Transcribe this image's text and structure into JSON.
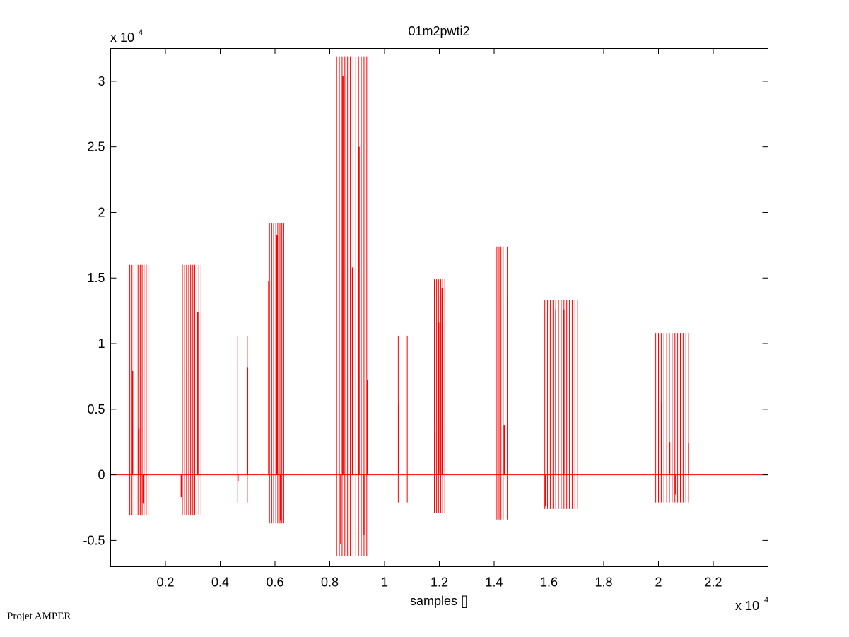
{
  "figure": {
    "footer_text": "Projet AMPER"
  },
  "chart_data": {
    "type": "line",
    "title": "01m2pwti2",
    "xlabel": "samples []",
    "ylabel": "",
    "x_exponent_label": "x 10",
    "x_exponent_power": "4",
    "y_exponent_label": "x 10",
    "y_exponent_power": "4",
    "xlim": [
      0,
      2.4
    ],
    "ylim": [
      -0.7,
      3.25
    ],
    "x_ticks": [
      0.2,
      0.4,
      0.6,
      0.8,
      1,
      1.2,
      1.4,
      1.6,
      1.8,
      2,
      2.2
    ],
    "x_tick_labels": [
      "0.2",
      "0.4",
      "0.6",
      "0.8",
      "1",
      "1.2",
      "1.4",
      "1.6",
      "1.8",
      "2",
      "2.2"
    ],
    "y_ticks": [
      -0.5,
      0,
      0.5,
      1,
      1.5,
      2,
      2.5,
      3
    ],
    "y_tick_labels": [
      "-0.5",
      "0",
      "0.5",
      "1",
      "1.5",
      "2",
      "2.5",
      "3"
    ],
    "grid": false,
    "series_color": "#ff0000",
    "baseline": 0,
    "series": [
      {
        "x": [
          0.07,
          0.078,
          0.085,
          0.093,
          0.1,
          0.108,
          0.115,
          0.122,
          0.13,
          0.137
        ],
        "ymax": [
          1.6,
          1.6,
          1.6,
          1.6,
          1.6,
          1.6,
          1.6,
          1.6,
          1.6,
          1.6
        ],
        "ymin": [
          -0.31,
          -0.31,
          -0.31,
          -0.31,
          -0.31,
          -0.31,
          -0.31,
          -0.31,
          -0.31,
          -0.31
        ]
      },
      {
        "x": [
          0.262,
          0.27,
          0.277,
          0.285,
          0.292,
          0.3,
          0.307,
          0.315,
          0.322,
          0.33
        ],
        "ymax": [
          1.6,
          1.6,
          1.6,
          1.6,
          1.6,
          1.6,
          1.6,
          1.6,
          1.6,
          1.6
        ],
        "ymin": [
          -0.31,
          -0.31,
          -0.31,
          -0.31,
          -0.31,
          -0.31,
          -0.31,
          -0.31,
          -0.31,
          -0.31
        ]
      },
      {
        "x": [
          0.464,
          0.499
        ],
        "ymax": [
          1.06,
          1.06
        ],
        "ymin": [
          -0.21,
          -0.21
        ]
      },
      {
        "x": [
          0.58,
          0.588,
          0.595,
          0.603,
          0.61,
          0.618,
          0.625,
          0.632
        ],
        "ymax": [
          1.92,
          1.92,
          1.92,
          1.92,
          1.92,
          1.92,
          1.92,
          1.92
        ],
        "ymin": [
          -0.37,
          -0.37,
          -0.37,
          -0.37,
          -0.37,
          -0.37,
          -0.37,
          -0.37
        ]
      },
      {
        "x": [
          0.825,
          0.835,
          0.845,
          0.855,
          0.865,
          0.875,
          0.885,
          0.895,
          0.905,
          0.915,
          0.925,
          0.935
        ],
        "ymax": [
          3.19,
          3.19,
          3.19,
          3.19,
          3.19,
          3.19,
          3.19,
          3.19,
          3.19,
          3.19,
          3.19,
          3.19
        ],
        "ymin": [
          -0.62,
          -0.62,
          -0.62,
          -0.62,
          -0.62,
          -0.62,
          -0.62,
          -0.62,
          -0.62,
          -0.62,
          -0.62,
          -0.62
        ]
      },
      {
        "x": [
          1.05,
          1.083
        ],
        "ymax": [
          1.06,
          1.06
        ],
        "ymin": [
          -0.21,
          -0.21
        ]
      },
      {
        "x": [
          1.182,
          1.19,
          1.197,
          1.205,
          1.212,
          1.22
        ],
        "ymax": [
          1.49,
          1.49,
          1.49,
          1.49,
          1.49,
          1.49
        ],
        "ymin": [
          -0.29,
          -0.29,
          -0.29,
          -0.29,
          -0.29,
          -0.29
        ]
      },
      {
        "x": [
          1.41,
          1.418,
          1.425,
          1.433,
          1.44,
          1.448
        ],
        "ymax": [
          1.74,
          1.74,
          1.74,
          1.74,
          1.74,
          1.74
        ],
        "ymin": [
          -0.34,
          -0.34,
          -0.34,
          -0.34,
          -0.34,
          -0.34
        ]
      },
      {
        "x": [
          1.585,
          1.595,
          1.605,
          1.615,
          1.625,
          1.635,
          1.645,
          1.655,
          1.665,
          1.675,
          1.685,
          1.695,
          1.705
        ],
        "ymax": [
          1.33,
          1.33,
          1.33,
          1.33,
          1.33,
          1.33,
          1.33,
          1.33,
          1.33,
          1.33,
          1.33,
          1.33,
          1.33
        ],
        "ymin": [
          -0.26,
          -0.26,
          -0.26,
          -0.26,
          -0.26,
          -0.26,
          -0.26,
          -0.26,
          -0.26,
          -0.26,
          -0.26,
          -0.26,
          -0.26
        ]
      },
      {
        "x": [
          1.99,
          2.0,
          2.01,
          2.02,
          2.03,
          2.04,
          2.05,
          2.06,
          2.07,
          2.08,
          2.09,
          2.1,
          2.11
        ],
        "ymax": [
          1.08,
          1.08,
          1.08,
          1.08,
          1.08,
          1.08,
          1.08,
          1.08,
          1.08,
          1.08,
          1.08,
          1.08,
          1.08
        ],
        "ymin": [
          -0.21,
          -0.21,
          -0.21,
          -0.21,
          -0.21,
          -0.21,
          -0.21,
          -0.21,
          -0.21,
          -0.21,
          -0.21,
          -0.21,
          -0.21
        ]
      }
    ],
    "inner_spikes": [
      {
        "x": 0.08,
        "y": 0.79
      },
      {
        "x": 0.103,
        "y": 0.35
      },
      {
        "x": 0.119,
        "y": -0.22
      },
      {
        "x": 0.278,
        "y": 0.79
      },
      {
        "x": 0.318,
        "y": 1.24
      },
      {
        "x": 0.258,
        "y": -0.17
      },
      {
        "x": 0.5,
        "y": 0.82
      },
      {
        "x": 0.465,
        "y": -0.05
      },
      {
        "x": 0.577,
        "y": 1.48
      },
      {
        "x": 0.607,
        "y": 1.83
      },
      {
        "x": 0.62,
        "y": -0.35
      },
      {
        "x": 0.848,
        "y": 3.04
      },
      {
        "x": 0.883,
        "y": 1.58
      },
      {
        "x": 0.907,
        "y": 2.5
      },
      {
        "x": 0.925,
        "y": -0.46
      },
      {
        "x": 0.937,
        "y": 0.72
      },
      {
        "x": 0.84,
        "y": -0.53
      },
      {
        "x": 1.052,
        "y": 0.54
      },
      {
        "x": 1.198,
        "y": 1.16
      },
      {
        "x": 1.21,
        "y": 1.42
      },
      {
        "x": 1.184,
        "y": 0.33
      },
      {
        "x": 1.437,
        "y": 0.38
      },
      {
        "x": 1.449,
        "y": 1.35
      },
      {
        "x": 1.625,
        "y": 1.26
      },
      {
        "x": 1.655,
        "y": 1.26
      },
      {
        "x": 1.587,
        "y": -0.24
      },
      {
        "x": 2.011,
        "y": 0.55
      },
      {
        "x": 2.041,
        "y": 0.25
      },
      {
        "x": 2.11,
        "y": 0.24
      },
      {
        "x": 2.061,
        "y": -0.15
      }
    ]
  }
}
